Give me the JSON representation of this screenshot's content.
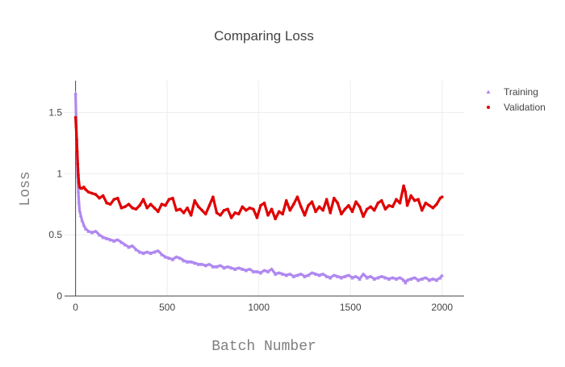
{
  "chart_data": {
    "type": "scatter",
    "title": "Comparing Loss",
    "xlabel": "Batch Number",
    "ylabel": "Loss",
    "xlim": [
      -60,
      2120
    ],
    "ylim": [
      0,
      1.76
    ],
    "xticks": [
      0,
      500,
      1000,
      1500,
      2000
    ],
    "yticks": [
      0,
      0.5,
      1,
      1.5
    ],
    "ytick_labels": [
      "0",
      "0.5",
      "1",
      "1.5"
    ],
    "grid": true,
    "legend": "top-right",
    "series": [
      {
        "name": "Training",
        "color": "#b088f0",
        "marker": "triangle",
        "points": [
          [
            0,
            1.66
          ],
          [
            3,
            1.45
          ],
          [
            6,
            1.28
          ],
          [
            9,
            1.12
          ],
          [
            12,
            0.98
          ],
          [
            15,
            0.86
          ],
          [
            18,
            0.77
          ],
          [
            22,
            0.7
          ],
          [
            28,
            0.66
          ],
          [
            35,
            0.62
          ],
          [
            45,
            0.58
          ],
          [
            55,
            0.55
          ],
          [
            70,
            0.53
          ],
          [
            90,
            0.52
          ],
          [
            110,
            0.53
          ],
          [
            130,
            0.5
          ],
          [
            150,
            0.48
          ],
          [
            170,
            0.47
          ],
          [
            190,
            0.46
          ],
          [
            210,
            0.45
          ],
          [
            230,
            0.46
          ],
          [
            250,
            0.44
          ],
          [
            270,
            0.42
          ],
          [
            290,
            0.4
          ],
          [
            310,
            0.41
          ],
          [
            330,
            0.38
          ],
          [
            350,
            0.36
          ],
          [
            370,
            0.35
          ],
          [
            390,
            0.36
          ],
          [
            410,
            0.35
          ],
          [
            430,
            0.36
          ],
          [
            450,
            0.37
          ],
          [
            470,
            0.34
          ],
          [
            490,
            0.32
          ],
          [
            510,
            0.31
          ],
          [
            530,
            0.3
          ],
          [
            550,
            0.32
          ],
          [
            570,
            0.31
          ],
          [
            590,
            0.29
          ],
          [
            610,
            0.28
          ],
          [
            630,
            0.28
          ],
          [
            650,
            0.27
          ],
          [
            670,
            0.26
          ],
          [
            690,
            0.26
          ],
          [
            710,
            0.25
          ],
          [
            730,
            0.26
          ],
          [
            750,
            0.24
          ],
          [
            770,
            0.24
          ],
          [
            790,
            0.25
          ],
          [
            810,
            0.23
          ],
          [
            830,
            0.24
          ],
          [
            850,
            0.23
          ],
          [
            870,
            0.22
          ],
          [
            890,
            0.23
          ],
          [
            910,
            0.22
          ],
          [
            930,
            0.21
          ],
          [
            950,
            0.22
          ],
          [
            970,
            0.2
          ],
          [
            990,
            0.2
          ],
          [
            1010,
            0.19
          ],
          [
            1030,
            0.21
          ],
          [
            1050,
            0.2
          ],
          [
            1070,
            0.22
          ],
          [
            1090,
            0.18
          ],
          [
            1110,
            0.19
          ],
          [
            1130,
            0.18
          ],
          [
            1150,
            0.17
          ],
          [
            1170,
            0.18
          ],
          [
            1190,
            0.16
          ],
          [
            1210,
            0.17
          ],
          [
            1230,
            0.18
          ],
          [
            1250,
            0.16
          ],
          [
            1270,
            0.17
          ],
          [
            1290,
            0.19
          ],
          [
            1310,
            0.18
          ],
          [
            1330,
            0.17
          ],
          [
            1350,
            0.18
          ],
          [
            1370,
            0.16
          ],
          [
            1390,
            0.15
          ],
          [
            1410,
            0.17
          ],
          [
            1430,
            0.16
          ],
          [
            1450,
            0.15
          ],
          [
            1470,
            0.16
          ],
          [
            1490,
            0.17
          ],
          [
            1510,
            0.15
          ],
          [
            1530,
            0.16
          ],
          [
            1550,
            0.14
          ],
          [
            1570,
            0.18
          ],
          [
            1590,
            0.15
          ],
          [
            1610,
            0.16
          ],
          [
            1630,
            0.14
          ],
          [
            1650,
            0.15
          ],
          [
            1670,
            0.16
          ],
          [
            1690,
            0.15
          ],
          [
            1710,
            0.14
          ],
          [
            1730,
            0.15
          ],
          [
            1750,
            0.14
          ],
          [
            1770,
            0.15
          ],
          [
            1790,
            0.13
          ],
          [
            1800,
            0.11
          ],
          [
            1810,
            0.13
          ],
          [
            1830,
            0.14
          ],
          [
            1850,
            0.15
          ],
          [
            1870,
            0.13
          ],
          [
            1890,
            0.14
          ],
          [
            1910,
            0.15
          ],
          [
            1930,
            0.13
          ],
          [
            1950,
            0.14
          ],
          [
            1970,
            0.13
          ],
          [
            1990,
            0.15
          ],
          [
            2000,
            0.17
          ]
        ]
      },
      {
        "name": "Validation",
        "color": "#e00000",
        "marker": "circle",
        "points": [
          [
            0,
            1.46
          ],
          [
            3,
            1.38
          ],
          [
            6,
            1.28
          ],
          [
            9,
            1.18
          ],
          [
            12,
            1.08
          ],
          [
            15,
            0.99
          ],
          [
            18,
            0.93
          ],
          [
            22,
            0.89
          ],
          [
            28,
            0.88
          ],
          [
            35,
            0.88
          ],
          [
            45,
            0.89
          ],
          [
            55,
            0.87
          ],
          [
            70,
            0.85
          ],
          [
            90,
            0.84
          ],
          [
            110,
            0.83
          ],
          [
            130,
            0.8
          ],
          [
            150,
            0.82
          ],
          [
            170,
            0.76
          ],
          [
            190,
            0.75
          ],
          [
            210,
            0.79
          ],
          [
            230,
            0.8
          ],
          [
            250,
            0.72
          ],
          [
            270,
            0.73
          ],
          [
            290,
            0.75
          ],
          [
            310,
            0.72
          ],
          [
            330,
            0.71
          ],
          [
            350,
            0.74
          ],
          [
            370,
            0.79
          ],
          [
            390,
            0.72
          ],
          [
            410,
            0.75
          ],
          [
            430,
            0.72
          ],
          [
            450,
            0.69
          ],
          [
            470,
            0.75
          ],
          [
            490,
            0.74
          ],
          [
            510,
            0.79
          ],
          [
            530,
            0.8
          ],
          [
            550,
            0.7
          ],
          [
            570,
            0.71
          ],
          [
            590,
            0.68
          ],
          [
            610,
            0.72
          ],
          [
            630,
            0.66
          ],
          [
            650,
            0.78
          ],
          [
            670,
            0.73
          ],
          [
            690,
            0.7
          ],
          [
            710,
            0.67
          ],
          [
            730,
            0.74
          ],
          [
            750,
            0.81
          ],
          [
            770,
            0.68
          ],
          [
            790,
            0.66
          ],
          [
            810,
            0.7
          ],
          [
            830,
            0.71
          ],
          [
            850,
            0.64
          ],
          [
            870,
            0.68
          ],
          [
            890,
            0.67
          ],
          [
            910,
            0.73
          ],
          [
            930,
            0.7
          ],
          [
            950,
            0.72
          ],
          [
            970,
            0.71
          ],
          [
            990,
            0.64
          ],
          [
            1010,
            0.74
          ],
          [
            1030,
            0.76
          ],
          [
            1050,
            0.66
          ],
          [
            1070,
            0.71
          ],
          [
            1090,
            0.63
          ],
          [
            1110,
            0.69
          ],
          [
            1130,
            0.67
          ],
          [
            1150,
            0.78
          ],
          [
            1170,
            0.7
          ],
          [
            1190,
            0.75
          ],
          [
            1210,
            0.81
          ],
          [
            1230,
            0.73
          ],
          [
            1250,
            0.66
          ],
          [
            1270,
            0.74
          ],
          [
            1290,
            0.77
          ],
          [
            1310,
            0.69
          ],
          [
            1330,
            0.73
          ],
          [
            1350,
            0.7
          ],
          [
            1370,
            0.79
          ],
          [
            1390,
            0.68
          ],
          [
            1410,
            0.8
          ],
          [
            1430,
            0.76
          ],
          [
            1450,
            0.67
          ],
          [
            1470,
            0.71
          ],
          [
            1490,
            0.74
          ],
          [
            1510,
            0.69
          ],
          [
            1530,
            0.77
          ],
          [
            1550,
            0.73
          ],
          [
            1570,
            0.65
          ],
          [
            1590,
            0.71
          ],
          [
            1610,
            0.73
          ],
          [
            1630,
            0.7
          ],
          [
            1650,
            0.76
          ],
          [
            1670,
            0.78
          ],
          [
            1690,
            0.71
          ],
          [
            1710,
            0.74
          ],
          [
            1730,
            0.73
          ],
          [
            1750,
            0.79
          ],
          [
            1770,
            0.76
          ],
          [
            1790,
            0.9
          ],
          [
            1800,
            0.85
          ],
          [
            1810,
            0.74
          ],
          [
            1830,
            0.82
          ],
          [
            1850,
            0.78
          ],
          [
            1870,
            0.79
          ],
          [
            1890,
            0.7
          ],
          [
            1910,
            0.76
          ],
          [
            1930,
            0.74
          ],
          [
            1950,
            0.72
          ],
          [
            1970,
            0.75
          ],
          [
            1990,
            0.8
          ],
          [
            2000,
            0.81
          ]
        ]
      }
    ]
  }
}
